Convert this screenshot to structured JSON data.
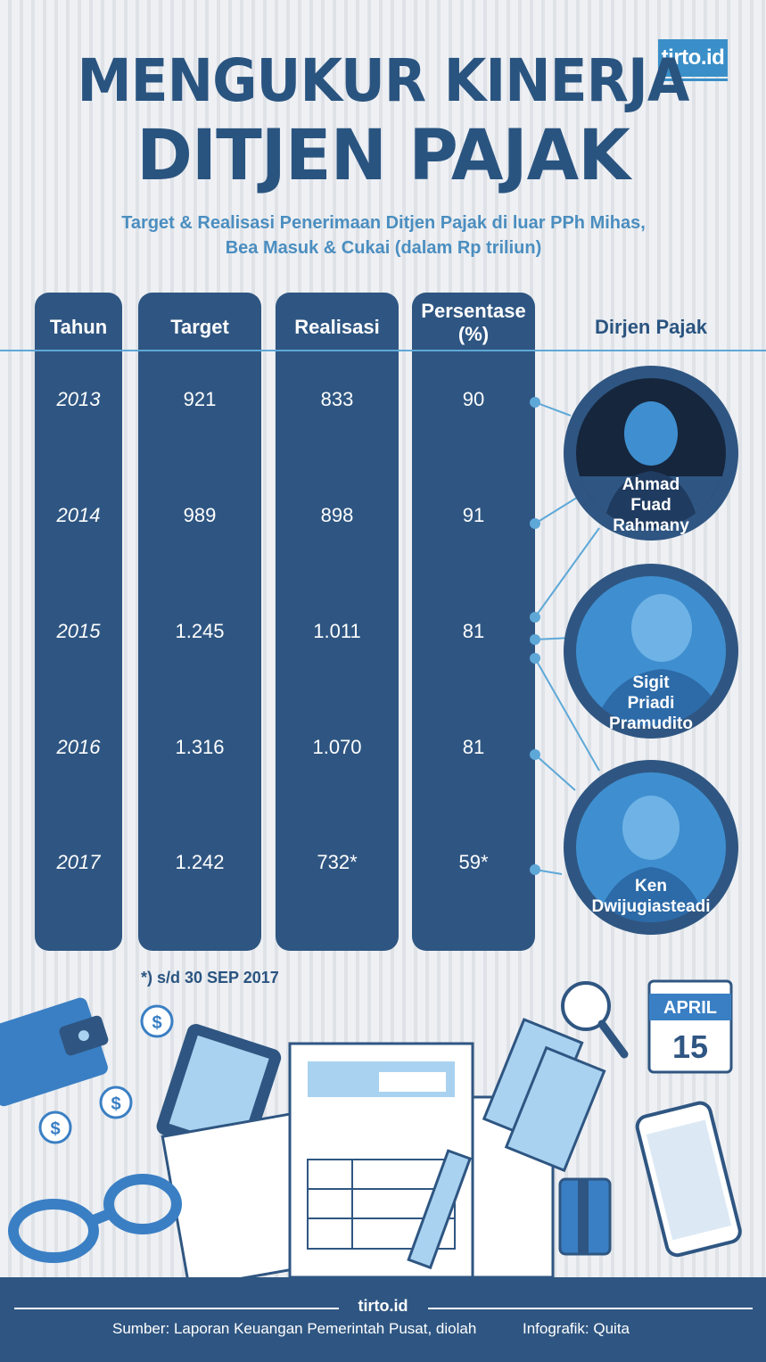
{
  "brand": {
    "logo": "tirto.id",
    "footer": "tirto.id"
  },
  "header": {
    "title_line1": "MENGUKUR KINERJA",
    "title_line2": "DITJEN PAJAK",
    "subtitle_line1": "Target & Realisasi Penerimaan Ditjen Pajak di luar PPh Mihas,",
    "subtitle_line2": "Bea Masuk & Cukai  (dalam Rp triliun)"
  },
  "chart_data": {
    "type": "table",
    "columns": [
      "Tahun",
      "Target",
      "Realisasi",
      "Persentase (%)",
      "Dirjen Pajak"
    ],
    "column_labels": {
      "year": "Tahun",
      "target": "Target",
      "realisasi": "Realisasi",
      "persen_line1": "Persentase",
      "persen_line2": "(%)",
      "dirjen": "Dirjen Pajak"
    },
    "rows": [
      {
        "year": "2013",
        "target": "921",
        "realisasi": "833",
        "persen": "90"
      },
      {
        "year": "2014",
        "target": "989",
        "realisasi": "898",
        "persen": "91"
      },
      {
        "year": "2015",
        "target": "1.245",
        "realisasi": "1.011",
        "persen": "81"
      },
      {
        "year": "2016",
        "target": "1.316",
        "realisasi": "1.070",
        "persen": "81"
      },
      {
        "year": "2017",
        "target": "1.242",
        "realisasi": "732*",
        "persen": "59*"
      }
    ],
    "dirjen": [
      {
        "name_lines": [
          "Ahmad",
          "Fuad",
          "Rahmany"
        ]
      },
      {
        "name_lines": [
          "Sigit",
          "Priadi",
          "Pramudito"
        ]
      },
      {
        "name_lines": [
          "Ken",
          "Dwijugiasteadi"
        ]
      }
    ],
    "footnote": "*) s/d 30 SEP 2017"
  },
  "calendar": {
    "month": "APRIL",
    "day": "15"
  },
  "footer": {
    "source": "Sumber: Laporan Keuangan Pemerintah Pusat, diolah",
    "credit": "Infografik: Quita"
  },
  "colors": {
    "navy": "#2f5682",
    "title": "#2a5480",
    "accent": "#5ea8d8",
    "subtitle": "#4b8ec0"
  }
}
